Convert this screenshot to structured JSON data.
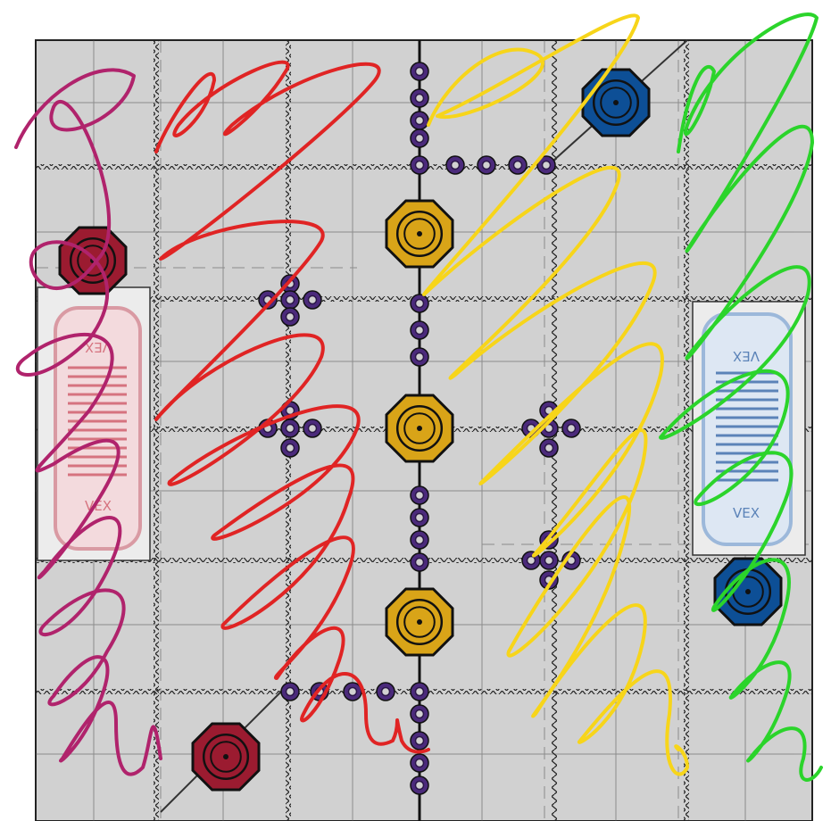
{
  "field": {
    "tile_color": "#d1d1d1",
    "line_color": "#1a1a1a",
    "ring_color": "#4b2a7b",
    "ring_inner": "#2b1748",
    "red_goal": "#9b1b30",
    "blue_goal": "#0d4f96",
    "neutral_goal": "#d9a418",
    "zone_left_label_top": "VEX",
    "zone_left_label_bottom": "VEX",
    "zone_right_label_top": "VEX",
    "zone_right_label_bottom": "VEX"
  },
  "scribbles": [
    {
      "name": "magenta-scribble",
      "color": "#b0236c"
    },
    {
      "name": "red-scribble",
      "color": "#e02424"
    },
    {
      "name": "yellow-scribble",
      "color": "#f7d51a"
    },
    {
      "name": "green-scribble",
      "color": "#2bd42b"
    }
  ]
}
